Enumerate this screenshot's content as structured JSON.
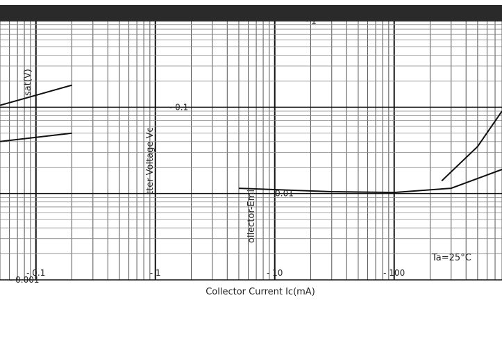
{
  "chart_data": {
    "type": "line",
    "xlabel": "Collector Current   Ic(mA)",
    "ylabel_parts": [
      "sat(V)",
      "tter Voltage   Vc",
      "ollector-Emi"
    ],
    "legend_text": "Ta=25°C",
    "xscale": "log",
    "yscale": "log",
    "xlim": [
      0.05,
      800
    ],
    "ylim": [
      0.001,
      1
    ],
    "x_ticks": [
      "0.1",
      "1",
      "10",
      "100"
    ],
    "y_ticks": [
      "0.001",
      "0.01",
      "0.1",
      "1"
    ],
    "grid": true,
    "series": [
      {
        "x": [
          0.05,
          0.2
        ],
        "y": [
          0.105,
          0.18
        ]
      },
      {
        "x": [
          0.05,
          0.2
        ],
        "y": [
          0.04,
          0.05
        ]
      },
      {
        "x": [
          5,
          30,
          100,
          300,
          800
        ],
        "y": [
          0.0115,
          0.0105,
          0.0103,
          0.0115,
          0.019
        ]
      },
      {
        "x": [
          250,
          500,
          800
        ],
        "y": [
          0.014,
          0.035,
          0.09
        ]
      }
    ]
  }
}
